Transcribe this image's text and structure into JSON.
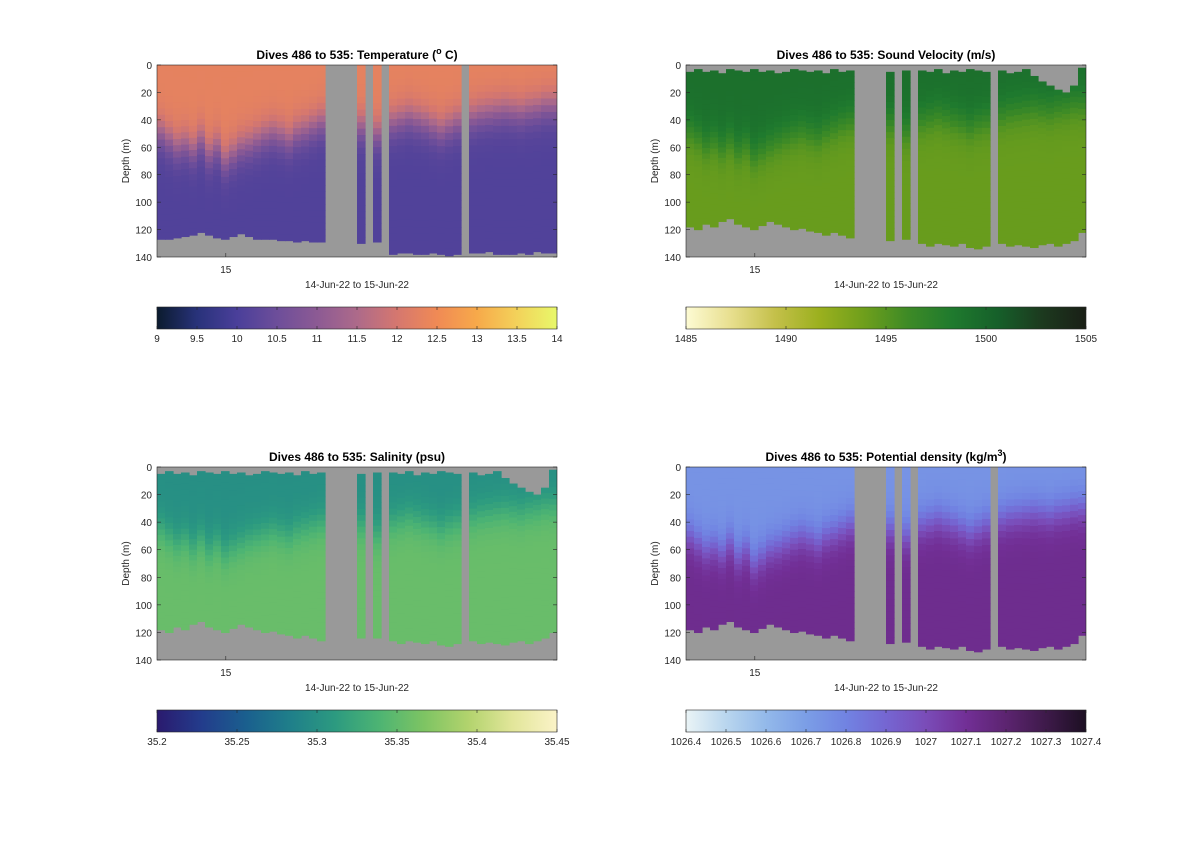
{
  "figure": {
    "background": "#ffffff",
    "nodata_color": "#999999"
  },
  "chart_data": [
    {
      "type": "heatmap",
      "title": "Dives 486 to 535: Temperature (",
      "title_sup": "o",
      "title_after": " C)",
      "ylabel": "Depth (m)",
      "xlabel": "14-Jun-22 to 15-Jun-22",
      "x_tick_labels": [
        "15"
      ],
      "y_ticks": [
        0,
        20,
        40,
        60,
        80,
        100,
        120,
        140
      ],
      "ylim": [
        0,
        140
      ],
      "y_reversed": true,
      "colorbar": {
        "ticks": [
          "9",
          "9.5",
          "10",
          "10.5",
          "11",
          "11.5",
          "12",
          "12.5",
          "13",
          "13.5",
          "14"
        ],
        "range": [
          9,
          14
        ],
        "colors": [
          "#0b1b2e",
          "#28327a",
          "#4a3f9a",
          "#6d4e9a",
          "#8c5a94",
          "#ad6a8a",
          "#d5776f",
          "#f08a55",
          "#f7a94a",
          "#f3d25a",
          "#e8f86a"
        ]
      },
      "profile": {
        "surface_value": 12.3,
        "deep_value": 10.1,
        "cline_depths": [
          50,
          55,
          60,
          58,
          62,
          55,
          65,
          60,
          70,
          65,
          60,
          58,
          55,
          52,
          50,
          52,
          55,
          50,
          48,
          45,
          42,
          40,
          40,
          38,
          42,
          45,
          48,
          50,
          45,
          42,
          40,
          38,
          40,
          42,
          45,
          48,
          45,
          42,
          40,
          38,
          36,
          35,
          34,
          33,
          34,
          35,
          33,
          32,
          30,
          30
        ],
        "bottom_depths": [
          127,
          127,
          126,
          125,
          124,
          122,
          124,
          126,
          127,
          125,
          123,
          125,
          127,
          127,
          127,
          128,
          128,
          129,
          128,
          129,
          129,
          0,
          0,
          0,
          0,
          130,
          0,
          129,
          0,
          138,
          137,
          137,
          138,
          138,
          137,
          138,
          139,
          138,
          0,
          137,
          137,
          136,
          138,
          138,
          138,
          137,
          138,
          136,
          137,
          137
        ],
        "top_depths": [
          0,
          0,
          0,
          0,
          0,
          0,
          0,
          0,
          0,
          0,
          0,
          0,
          0,
          0,
          0,
          0,
          0,
          0,
          0,
          0,
          0,
          0,
          0,
          0,
          0,
          0,
          0,
          0,
          0,
          0,
          0,
          0,
          0,
          0,
          0,
          0,
          0,
          0,
          0,
          0,
          0,
          0,
          0,
          0,
          0,
          0,
          0,
          0,
          0,
          0
        ]
      }
    },
    {
      "type": "heatmap",
      "title": "Dives 486 to 535: Sound Velocity (m/s)",
      "ylabel": "Depth (m)",
      "xlabel": "14-Jun-22 to 15-Jun-22",
      "x_tick_labels": [
        "15"
      ],
      "y_ticks": [
        0,
        20,
        40,
        60,
        80,
        100,
        120,
        140
      ],
      "ylim": [
        0,
        140
      ],
      "y_reversed": true,
      "colorbar": {
        "ticks": [
          "1485",
          "1490",
          "1495",
          "1500",
          "1505"
        ],
        "range": [
          1485,
          1505
        ],
        "colors": [
          "#fdfbd4",
          "#e8df8f",
          "#c4c04a",
          "#9bb01e",
          "#6f9f1c",
          "#3d8a26",
          "#1f7a2e",
          "#16602a",
          "#1c3a1f",
          "#1a1f16"
        ]
      },
      "profile": {
        "surface_value": 1499.2,
        "deep_value": 1494.2,
        "cline_depths": [
          48,
          52,
          58,
          55,
          60,
          55,
          62,
          58,
          66,
          62,
          58,
          55,
          52,
          50,
          48,
          50,
          52,
          48,
          45,
          42,
          40,
          38,
          38,
          36,
          40,
          42,
          45,
          48,
          43,
          40,
          38,
          36,
          38,
          40,
          42,
          45,
          42,
          40,
          38,
          36,
          34,
          33,
          32,
          31,
          32,
          33,
          31,
          30,
          28,
          28
        ],
        "bottom_depths": [
          118,
          120,
          116,
          118,
          114,
          112,
          116,
          118,
          120,
          117,
          114,
          116,
          118,
          120,
          119,
          121,
          122,
          124,
          122,
          124,
          126,
          0,
          0,
          0,
          0,
          128,
          0,
          127,
          0,
          130,
          132,
          130,
          131,
          132,
          130,
          133,
          134,
          132,
          0,
          130,
          132,
          131,
          132,
          133,
          131,
          130,
          132,
          130,
          128,
          122
        ],
        "top_depths": [
          5,
          3,
          5,
          4,
          6,
          3,
          4,
          5,
          3,
          5,
          4,
          6,
          5,
          3,
          4,
          5,
          4,
          6,
          3,
          5,
          4,
          0,
          0,
          0,
          0,
          5,
          0,
          4,
          0,
          4,
          5,
          3,
          6,
          4,
          5,
          3,
          4,
          5,
          0,
          4,
          6,
          5,
          3,
          8,
          12,
          15,
          18,
          20,
          15,
          2
        ]
      }
    },
    {
      "type": "heatmap",
      "title": "Dives 486 to 535: Salinity (psu)",
      "ylabel": "Depth (m)",
      "xlabel": "14-Jun-22 to 15-Jun-22",
      "x_tick_labels": [
        "15"
      ],
      "y_ticks": [
        0,
        20,
        40,
        60,
        80,
        100,
        120,
        140
      ],
      "ylim": [
        0,
        140
      ],
      "y_reversed": true,
      "colorbar": {
        "ticks": [
          "35.2",
          "35.25",
          "35.3",
          "35.35",
          "35.4",
          "35.45"
        ],
        "range": [
          35.2,
          35.45
        ],
        "colors": [
          "#2a1a6e",
          "#233c8c",
          "#1a5f8e",
          "#1f7f8a",
          "#2c9a80",
          "#4db473",
          "#7dc463",
          "#b2d36d",
          "#e2e69a",
          "#fbf3c8"
        ]
      },
      "profile": {
        "surface_value": 35.3,
        "deep_value": 35.355,
        "cline_depths": [
          45,
          50,
          55,
          52,
          58,
          52,
          60,
          55,
          62,
          58,
          55,
          52,
          50,
          48,
          46,
          48,
          50,
          46,
          44,
          42,
          40,
          38,
          38,
          36,
          40,
          42,
          46,
          48,
          42,
          40,
          38,
          36,
          38,
          40,
          42,
          45,
          42,
          40,
          38,
          36,
          34,
          33,
          32,
          31,
          32,
          33,
          31,
          30,
          28,
          28
        ],
        "bottom_depths": [
          118,
          120,
          116,
          118,
          114,
          112,
          116,
          118,
          120,
          117,
          114,
          116,
          118,
          120,
          119,
          121,
          122,
          124,
          122,
          124,
          126,
          0,
          0,
          0,
          0,
          124,
          0,
          124,
          0,
          126,
          128,
          126,
          127,
          128,
          126,
          129,
          130,
          128,
          0,
          126,
          128,
          127,
          128,
          129,
          127,
          126,
          128,
          126,
          124,
          120
        ],
        "top_depths": [
          5,
          3,
          5,
          4,
          6,
          3,
          4,
          5,
          3,
          5,
          4,
          6,
          5,
          3,
          4,
          5,
          4,
          6,
          3,
          5,
          4,
          0,
          0,
          0,
          0,
          5,
          0,
          4,
          0,
          4,
          5,
          3,
          6,
          4,
          5,
          3,
          4,
          5,
          0,
          4,
          6,
          5,
          3,
          8,
          12,
          15,
          18,
          20,
          15,
          2
        ]
      }
    },
    {
      "type": "heatmap",
      "title": "Dives 486 to 535: Potential density (kg/m",
      "title_sup": "3",
      "title_after": ")",
      "ylabel": "Depth (m)",
      "xlabel": "14-Jun-22 to 15-Jun-22",
      "x_tick_labels": [
        "15"
      ],
      "y_ticks": [
        0,
        20,
        40,
        60,
        80,
        100,
        120,
        140
      ],
      "ylim": [
        0,
        140
      ],
      "y_reversed": true,
      "colorbar": {
        "ticks": [
          "1026.4",
          "1026.5",
          "1026.6",
          "1026.7",
          "1026.8",
          "1026.9",
          "1027",
          "1027.1",
          "1027.2",
          "1027.3",
          "1027.4"
        ],
        "range": [
          1026.4,
          1027.4
        ],
        "colors": [
          "#eaf4f6",
          "#b9d6ee",
          "#93b9ea",
          "#7b9ee6",
          "#7183e2",
          "#7566d2",
          "#7a4cb8",
          "#722f96",
          "#5c2470",
          "#3e1a4a",
          "#1c0f22"
        ]
      },
      "profile": {
        "surface_value": 1026.74,
        "deep_value": 1027.12,
        "cline_depths": [
          50,
          55,
          60,
          58,
          62,
          55,
          65,
          60,
          70,
          65,
          60,
          58,
          55,
          52,
          50,
          52,
          55,
          50,
          48,
          45,
          42,
          40,
          40,
          38,
          42,
          45,
          48,
          50,
          45,
          42,
          40,
          38,
          40,
          42,
          45,
          48,
          45,
          42,
          40,
          38,
          36,
          35,
          34,
          33,
          34,
          35,
          33,
          32,
          30,
          30
        ],
        "bottom_depths": [
          118,
          120,
          116,
          118,
          114,
          112,
          116,
          118,
          120,
          117,
          114,
          116,
          118,
          120,
          119,
          121,
          122,
          124,
          122,
          124,
          126,
          0,
          0,
          0,
          0,
          128,
          0,
          127,
          0,
          130,
          132,
          130,
          131,
          132,
          130,
          133,
          134,
          132,
          0,
          130,
          132,
          131,
          132,
          133,
          131,
          130,
          132,
          130,
          128,
          122
        ],
        "top_depths": [
          0,
          0,
          0,
          0,
          0,
          0,
          0,
          0,
          0,
          0,
          0,
          0,
          0,
          0,
          0,
          0,
          0,
          0,
          0,
          0,
          0,
          0,
          0,
          0,
          0,
          0,
          0,
          0,
          0,
          0,
          0,
          0,
          0,
          0,
          0,
          0,
          0,
          0,
          0,
          0,
          0,
          0,
          0,
          0,
          0,
          0,
          0,
          0,
          0,
          0
        ]
      }
    }
  ]
}
